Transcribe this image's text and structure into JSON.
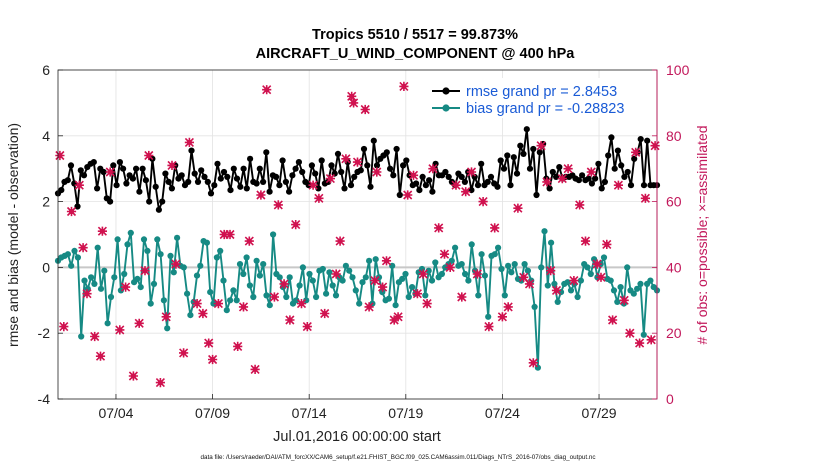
{
  "chart_data": {
    "type": "line",
    "title_line1": "Tropics 5510 / 5517 = 99.873%",
    "title_line2": "AIRCRAFT_U_WIND_COMPONENT @ 400 hPa",
    "xlabel": "Jul.01,2016 00:00:00 start",
    "ylabel_left": "rmse and bias (model - observation)",
    "ylabel_right": "# of obs: o=possible; ×=assimilated",
    "footer": "data file: /Users/raeder/DAI/ATM_forcXX/CAM6_setup/f.e21.FHIST_BGC.f09_025.CAM6assim.011/Diags_NTrS_2016-07/obs_diag_output.nc",
    "xlim": [
      1.0,
      32.0
    ],
    "ylim_left": [
      -4,
      6
    ],
    "ylim_right": [
      0,
      100
    ],
    "x_ticks": [
      4,
      9,
      14,
      19,
      24,
      29
    ],
    "x_tick_labels": [
      "07/04",
      "07/09",
      "07/14",
      "07/19",
      "07/24",
      "07/29"
    ],
    "y_left_ticks": [
      "-4",
      "-2",
      "0",
      "2",
      "4",
      "6"
    ],
    "y_right_ticks": [
      "0",
      "20",
      "40",
      "60",
      "80",
      "100"
    ],
    "grid": true,
    "legend_position": "top-right",
    "colors": {
      "rmse": "#000000",
      "bias": "#168a84",
      "obs": "#d0124f",
      "legend_text": "#1a5bd6",
      "right_axis": "#c2185b",
      "zero_line": "#c8c8c8",
      "grid": "#e3e3e3"
    },
    "legend": [
      {
        "name": "rmse grand pr = 2.8453",
        "series": "rmse"
      },
      {
        "name": "bias grand pr = -0.28823",
        "series": "bias"
      }
    ],
    "series": [
      {
        "name": "rmse",
        "values": [
          2.25,
          2.35,
          2.6,
          2.65,
          3.1,
          2.55,
          1.85,
          2.95,
          2.8,
          3.05,
          3.15,
          3.2,
          2.4,
          3.0,
          2.9,
          2.1,
          2.0,
          3.1,
          2.5,
          3.2,
          3.0,
          2.55,
          2.8,
          2.7,
          3.0,
          2.3,
          3.0,
          2.65,
          2.0,
          3.3,
          2.45,
          1.75,
          2.0,
          2.85,
          2.6,
          2.4,
          3.1,
          2.7,
          2.8,
          2.5,
          2.6,
          3.55,
          2.85,
          2.6,
          2.95,
          2.75,
          2.6,
          2.25,
          2.5,
          3.15,
          2.7,
          2.9,
          2.75,
          2.35,
          3.0,
          2.7,
          2.45,
          3.0,
          2.4,
          3.3,
          2.6,
          2.55,
          3.0,
          2.6,
          3.5,
          2.3,
          2.8,
          2.75,
          2.5,
          3.25,
          2.6,
          2.3,
          2.8,
          3.0,
          3.2,
          2.9,
          2.6,
          2.5,
          3.1,
          2.85,
          2.4,
          3.25,
          2.55,
          2.6,
          3.1,
          2.85,
          3.45,
          2.9,
          2.4,
          3.2,
          2.5,
          2.75,
          2.9,
          2.95,
          3.6,
          3.1,
          2.45,
          3.85,
          3.1,
          3.3,
          3.4,
          3.5,
          3.0,
          2.8,
          3.6,
          2.2,
          3.1,
          3.25,
          2.8,
          2.5,
          2.55,
          2.35,
          2.75,
          2.5,
          2.65,
          2.3,
          3.15,
          2.8,
          2.8,
          2.9,
          2.75,
          2.6,
          2.5,
          2.85,
          2.75,
          2.6,
          2.9,
          2.35,
          2.75,
          2.5,
          3.15,
          2.5,
          2.6,
          2.75,
          2.55,
          2.45,
          3.25,
          3.0,
          3.4,
          2.5,
          3.35,
          2.85,
          3.7,
          3.45,
          4.2,
          3.0,
          3.6,
          2.2,
          3.5,
          3.75,
          2.7,
          2.4,
          2.9,
          2.75,
          3.05,
          2.7,
          2.75,
          2.75,
          2.8,
          2.7,
          2.65,
          2.8,
          2.65,
          2.7,
          2.55,
          2.7,
          3.15,
          2.4,
          2.6,
          3.4,
          3.95,
          3.0,
          3.55,
          3.1,
          2.75,
          2.9,
          2.5,
          3.3,
          3.5,
          3.9,
          2.5,
          3.85,
          2.5,
          2.5,
          2.5
        ]
      },
      {
        "name": "bias",
        "values": [
          0.2,
          0.3,
          0.35,
          0.4,
          0.05,
          0.5,
          0.3,
          -2.1,
          -0.4,
          -0.65,
          -0.3,
          -0.5,
          0.6,
          -0.65,
          -0.1,
          -1.7,
          -0.9,
          -0.3,
          0.85,
          -0.7,
          -0.2,
          0.7,
          1.05,
          -0.45,
          -0.35,
          -0.6,
          0.85,
          0.5,
          -1.1,
          -0.5,
          0.85,
          0.4,
          -1.0,
          -1.85,
          0.35,
          -0.15,
          0.9,
          0.05,
          0.0,
          -0.8,
          -1.45,
          -1.05,
          -0.25,
          0.05,
          0.8,
          0.75,
          -0.75,
          -1.1,
          0.3,
          0.5,
          -0.4,
          -1.3,
          -1.0,
          -0.7,
          -1.0,
          0.1,
          -0.2,
          0.3,
          -0.55,
          -0.9,
          0.2,
          -0.25,
          0.1,
          -0.85,
          -1.15,
          1.0,
          -0.2,
          -0.3,
          -0.6,
          -0.9,
          -0.3,
          -1.1,
          -1.0,
          -0.55,
          0.0,
          -1.0,
          -0.2,
          -0.4,
          -0.9,
          -0.1,
          -0.05,
          -0.8,
          -0.15,
          -0.55,
          -0.85,
          -0.3,
          -0.4,
          0.05,
          -0.1,
          -0.3,
          -0.7,
          -1.1,
          -0.45,
          -0.3,
          0.2,
          -1.1,
          0.25,
          -0.3,
          -0.75,
          -1.0,
          -0.95,
          0.05,
          -1.15,
          -0.45,
          -0.35,
          -0.2,
          -0.9,
          -0.6,
          -0.8,
          -0.15,
          -0.05,
          -0.85,
          -0.1,
          -0.4,
          0.15,
          -0.3,
          -0.2,
          0.0,
          0.1,
          0.2,
          0.6,
          0.05,
          0.1,
          -0.2,
          -0.4,
          0.7,
          -0.1,
          -0.85,
          0.4,
          -0.25,
          -1.5,
          0.35,
          0.4,
          0.6,
          -0.05,
          -0.85,
          0.05,
          -0.15,
          0.1,
          -0.35,
          -0.4,
          0.1,
          -0.1,
          -0.4,
          -1.2,
          -3.05,
          0.0,
          1.1,
          -0.55,
          0.75,
          -0.5,
          -1.05,
          -0.75,
          -0.5,
          -0.45,
          -0.7,
          -0.5,
          -0.9,
          -0.4,
          0.1,
          0.0,
          -0.2,
          0.25,
          -0.3,
          0.1,
          0.3,
          -0.35,
          -0.4,
          -0.7,
          -1.05,
          -0.6,
          -1.1,
          0.0,
          -0.7,
          -0.8,
          -0.65,
          -0.5,
          -2.05,
          -0.5,
          -0.4,
          -0.6,
          -0.7
        ]
      },
      {
        "name": "obs-assimilated",
        "x": [
          1.1,
          1.3,
          1.7,
          2.1,
          2.3,
          2.5,
          2.9,
          3.2,
          3.3,
          3.7,
          4.2,
          4.5,
          4.9,
          5.2,
          5.5,
          5.7,
          6.3,
          6.6,
          6.9,
          7.1,
          7.5,
          7.8,
          8.2,
          8.5,
          8.8,
          9.0,
          9.3,
          9.6,
          9.9,
          10.3,
          10.6,
          10.9,
          11.2,
          11.5,
          11.8,
          12.2,
          12.4,
          12.7,
          13.0,
          13.3,
          13.6,
          13.9,
          14.2,
          14.5,
          14.8,
          15.1,
          15.4,
          15.6,
          15.9,
          16.2,
          16.3,
          16.5,
          16.9,
          17.1,
          17.4,
          17.5,
          17.8,
          18.0,
          18.4,
          18.6,
          18.9,
          19.1,
          19.4,
          19.6,
          19.9,
          20.1,
          20.4,
          20.7,
          21.0,
          21.3,
          21.6,
          21.9,
          22.1,
          22.4,
          22.7,
          23.0,
          23.3,
          23.6,
          24.0,
          24.3,
          24.6,
          24.8,
          25.1,
          25.4,
          25.6,
          26.0,
          26.3,
          26.5,
          26.8,
          27.1,
          27.4,
          27.7,
          28.0,
          28.3,
          28.6,
          28.9,
          29.1,
          29.4,
          29.7,
          30.0,
          30.3,
          30.6,
          30.9,
          31.1,
          31.4,
          31.7,
          31.9
        ],
        "values": [
          74,
          22,
          57,
          65,
          46,
          32,
          19,
          13,
          51,
          69,
          21,
          34,
          7,
          23,
          39,
          74,
          5,
          25,
          71,
          41,
          14,
          78,
          29,
          26,
          17,
          12,
          29,
          50,
          50,
          16,
          28,
          48,
          9,
          62,
          94,
          31,
          59,
          35,
          24,
          53,
          29,
          22,
          65,
          61,
          26,
          67,
          38,
          48,
          73,
          92,
          90,
          72,
          88,
          28,
          36,
          69,
          34,
          42,
          24,
          25,
          95,
          62,
          68,
          32,
          38,
          29,
          70,
          52,
          44,
          40,
          65,
          31,
          63,
          69,
          38,
          60,
          22,
          52,
          25,
          28,
          92,
          58,
          37,
          35,
          11,
          77,
          66,
          39,
          33,
          67,
          70,
          36,
          59,
          48,
          69,
          41,
          37,
          47,
          24,
          65,
          30,
          20,
          75,
          17,
          61,
          18,
          77
        ]
      }
    ]
  }
}
